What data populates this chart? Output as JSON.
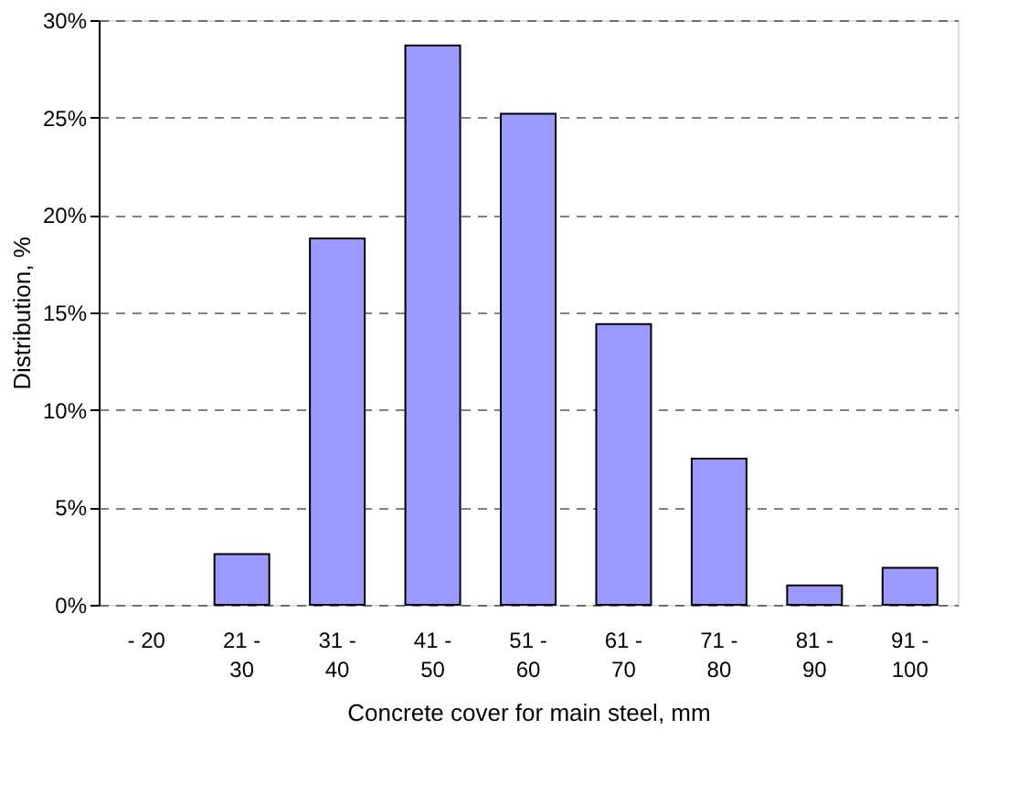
{
  "chart_data": {
    "type": "bar",
    "xlabel": "Concrete cover for main steel, mm",
    "ylabel": "Distribution, %",
    "categories": [
      "- 20",
      "21 - 30",
      "31 - 40",
      "41 - 50",
      "51 - 60",
      "61 - 70",
      "71 - 80",
      "81 - 90",
      "91 - 100"
    ],
    "values": [
      0,
      2.6,
      18.8,
      28.7,
      25.2,
      14.4,
      7.5,
      1.0,
      1.9
    ],
    "color": "#9999ff",
    "ylim": [
      0,
      30
    ],
    "yticks": [
      {
        "value": 0,
        "label": "0%"
      },
      {
        "value": 5,
        "label": "5%"
      },
      {
        "value": 10,
        "label": "10%"
      },
      {
        "value": 15,
        "label": "15%"
      },
      {
        "value": 20,
        "label": "20%"
      },
      {
        "value": 25,
        "label": "25%"
      },
      {
        "value": 30,
        "label": "30%"
      }
    ],
    "grid": "y"
  }
}
